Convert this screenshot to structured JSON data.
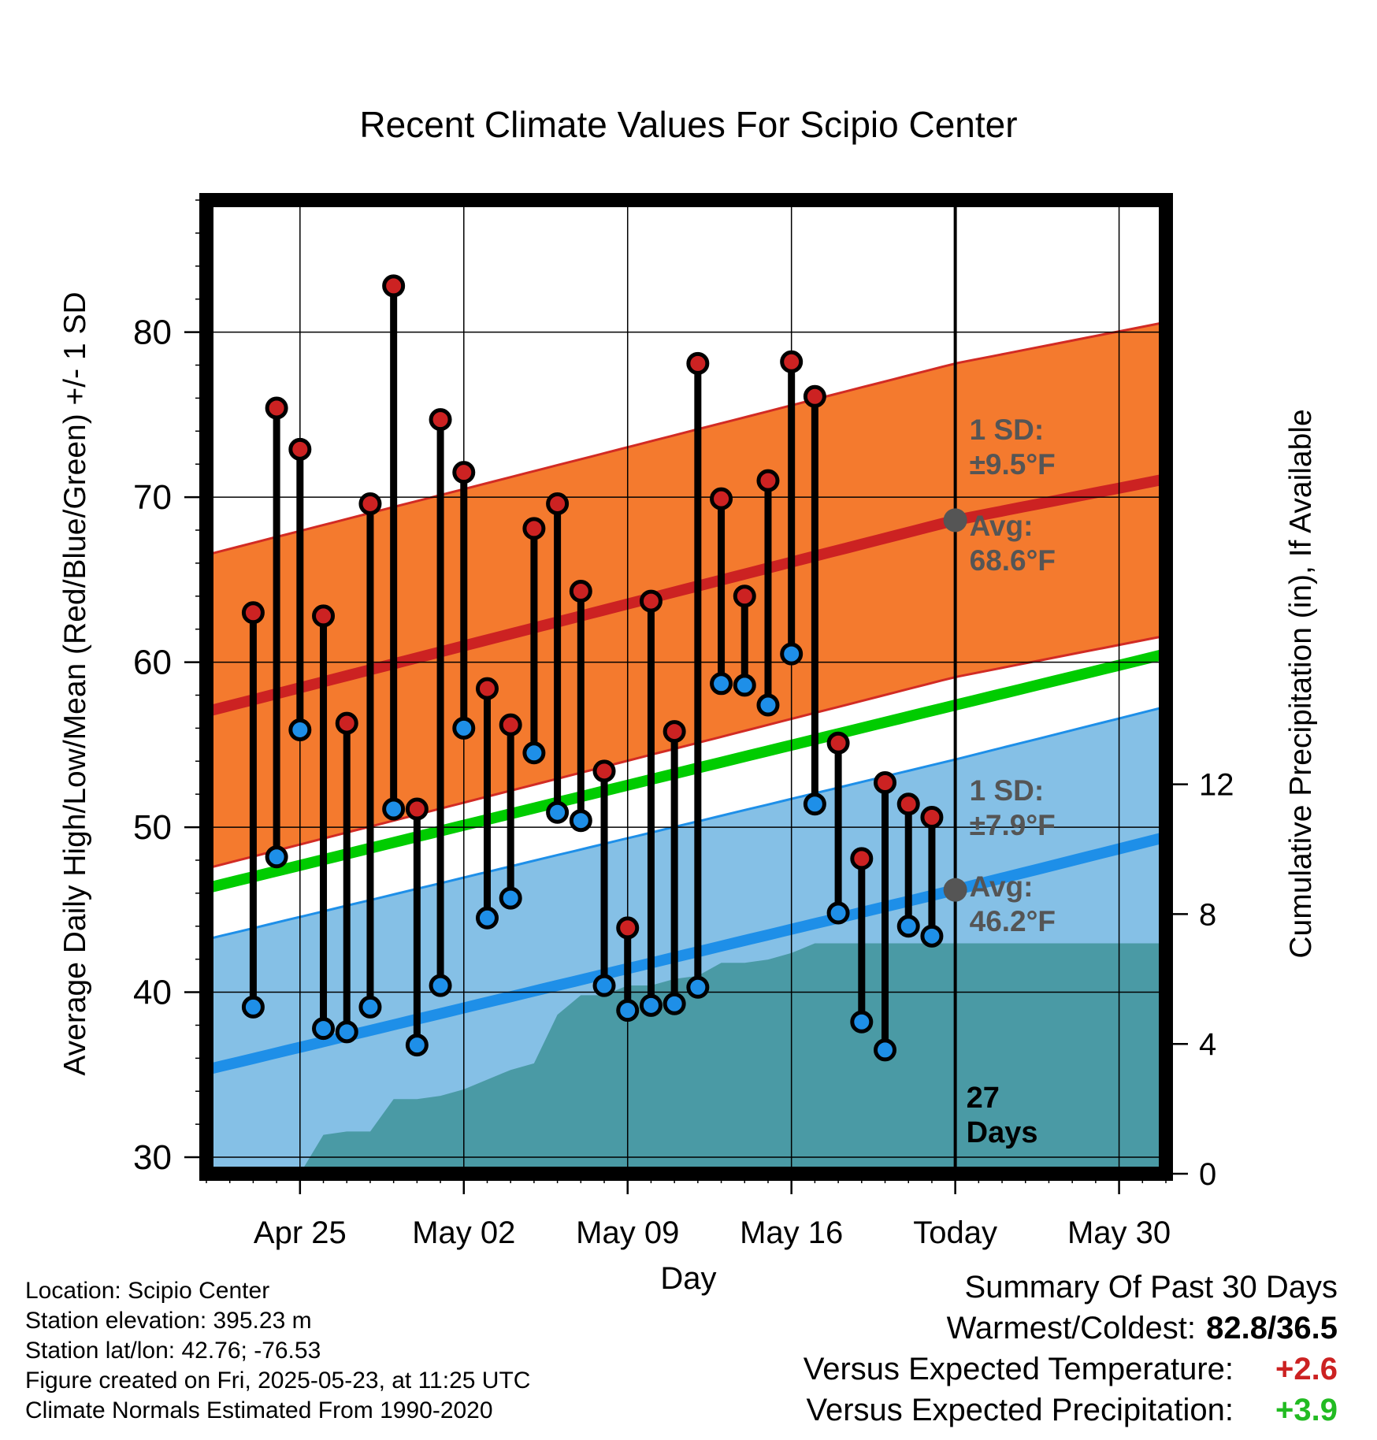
{
  "chart_data": {
    "type": "line",
    "title": "Recent Climate Values For Scipio Center",
    "xlabel": "Day",
    "ylabel": "Average Daily High/Low/Mean (Red/Blue/Green) +/- 1 SD",
    "ylabel_right": "Cumulative Precipitation (in), If Available",
    "ylim": [
      29,
      88
    ],
    "y_ticks": [
      30,
      40,
      50,
      60,
      70,
      80
    ],
    "ylim_right": [
      0,
      30
    ],
    "y_right_ticks": [
      0,
      4,
      8,
      12
    ],
    "xlim": [
      "2025-04-21",
      "2025-06-01"
    ],
    "x_ticks": [
      {
        "date": "2025-04-25",
        "label": "Apr 25"
      },
      {
        "date": "2025-05-02",
        "label": "May 02"
      },
      {
        "date": "2025-05-09",
        "label": "May 09"
      },
      {
        "date": "2025-05-16",
        "label": "May 16"
      },
      {
        "date": "2025-05-23",
        "label": "Today"
      },
      {
        "date": "2025-05-30",
        "label": "May 30"
      }
    ],
    "grid": true,
    "today": "2025-05-23",
    "today_label": "27 Days",
    "normal_high": {
      "dates": [
        "2025-04-21",
        "2025-05-23",
        "2025-06-01"
      ],
      "values": [
        57.0,
        68.6,
        71.1
      ]
    },
    "normal_high_sd": 9.5,
    "normal_low": {
      "dates": [
        "2025-04-21",
        "2025-05-23",
        "2025-06-01"
      ],
      "values": [
        35.3,
        46.2,
        49.4
      ]
    },
    "normal_low_sd": 7.9,
    "normal_mean": {
      "dates": [
        "2025-04-21",
        "2025-05-23",
        "2025-06-01"
      ],
      "values": [
        46.3,
        57.4,
        60.5
      ]
    },
    "annotation_high": {
      "sd": "1 SD:",
      "sd_value": "±9.5°F",
      "avg": "Avg:",
      "avg_value": "68.6°F"
    },
    "annotation_low": {
      "sd": "1 SD:",
      "sd_value": "±7.9°F",
      "avg": "Avg:",
      "avg_value": "46.2°F"
    },
    "daily": [
      {
        "date": "2025-04-23",
        "high": 63.0,
        "low": 39.1
      },
      {
        "date": "2025-04-24",
        "high": 75.4,
        "low": 48.2
      },
      {
        "date": "2025-04-25",
        "high": 72.9,
        "low": 55.9
      },
      {
        "date": "2025-04-26",
        "high": 62.8,
        "low": 37.8
      },
      {
        "date": "2025-04-27",
        "high": 56.3,
        "low": 37.6
      },
      {
        "date": "2025-04-28",
        "high": 69.6,
        "low": 39.1
      },
      {
        "date": "2025-04-29",
        "high": 82.8,
        "low": 51.1
      },
      {
        "date": "2025-04-30",
        "high": 51.1,
        "low": 36.8
      },
      {
        "date": "2025-05-01",
        "high": 74.7,
        "low": 40.4
      },
      {
        "date": "2025-05-02",
        "high": 71.5,
        "low": 56.0
      },
      {
        "date": "2025-05-03",
        "high": 58.4,
        "low": 44.5
      },
      {
        "date": "2025-05-04",
        "high": 56.2,
        "low": 45.7
      },
      {
        "date": "2025-05-05",
        "high": 68.1,
        "low": 54.5
      },
      {
        "date": "2025-05-06",
        "high": 69.6,
        "low": 50.9
      },
      {
        "date": "2025-05-07",
        "high": 64.3,
        "low": 50.4
      },
      {
        "date": "2025-05-08",
        "high": 53.4,
        "low": 40.4
      },
      {
        "date": "2025-05-09",
        "high": 43.9,
        "low": 38.9
      },
      {
        "date": "2025-05-10",
        "high": 63.7,
        "low": 39.2
      },
      {
        "date": "2025-05-11",
        "high": 55.8,
        "low": 39.3
      },
      {
        "date": "2025-05-12",
        "high": 78.1,
        "low": 40.3
      },
      {
        "date": "2025-05-13",
        "high": 69.9,
        "low": 58.7
      },
      {
        "date": "2025-05-14",
        "high": 64.0,
        "low": 58.6
      },
      {
        "date": "2025-05-15",
        "high": 71.0,
        "low": 57.4
      },
      {
        "date": "2025-05-16",
        "high": 78.2,
        "low": 60.5
      },
      {
        "date": "2025-05-17",
        "high": 76.1,
        "low": 51.4
      },
      {
        "date": "2025-05-18",
        "high": 55.1,
        "low": 44.8
      },
      {
        "date": "2025-05-19",
        "high": 48.1,
        "low": 38.2
      },
      {
        "date": "2025-05-20",
        "high": 52.7,
        "low": 36.5
      },
      {
        "date": "2025-05-21",
        "high": 51.4,
        "low": 44.0
      },
      {
        "date": "2025-05-22",
        "high": 50.6,
        "low": 43.4
      }
    ],
    "precip_cumulative": [
      {
        "date": "2025-04-21",
        "value": 0
      },
      {
        "date": "2025-04-25",
        "value": 0
      },
      {
        "date": "2025-04-26",
        "value": 1.2
      },
      {
        "date": "2025-04-27",
        "value": 1.3
      },
      {
        "date": "2025-04-28",
        "value": 1.3
      },
      {
        "date": "2025-04-29",
        "value": 2.3
      },
      {
        "date": "2025-04-30",
        "value": 2.3
      },
      {
        "date": "2025-05-01",
        "value": 2.4
      },
      {
        "date": "2025-05-02",
        "value": 2.6
      },
      {
        "date": "2025-05-03",
        "value": 2.9
      },
      {
        "date": "2025-05-04",
        "value": 3.2
      },
      {
        "date": "2025-05-05",
        "value": 3.4
      },
      {
        "date": "2025-05-06",
        "value": 4.9
      },
      {
        "date": "2025-05-07",
        "value": 5.5
      },
      {
        "date": "2025-05-08",
        "value": 5.5
      },
      {
        "date": "2025-05-09",
        "value": 5.8
      },
      {
        "date": "2025-05-10",
        "value": 5.8
      },
      {
        "date": "2025-05-11",
        "value": 6.0
      },
      {
        "date": "2025-05-12",
        "value": 6.1
      },
      {
        "date": "2025-05-13",
        "value": 6.5
      },
      {
        "date": "2025-05-14",
        "value": 6.5
      },
      {
        "date": "2025-05-15",
        "value": 6.6
      },
      {
        "date": "2025-05-16",
        "value": 6.8
      },
      {
        "date": "2025-05-17",
        "value": 7.1
      },
      {
        "date": "2025-05-22",
        "value": 7.1
      },
      {
        "date": "2025-06-01",
        "value": 7.1
      }
    ]
  },
  "info": {
    "location": "Location: Scipio Center",
    "elevation": "Station elevation: 395.23 m",
    "latlon": "Station lat/lon: 42.76; -76.53",
    "created": "Figure created on Fri, 2025-05-23, at 11:25 UTC",
    "normals": "Climate Normals Estimated From 1990-2020"
  },
  "summary": {
    "title": "Summary Of Past 30 Days",
    "warm_cold_label": "Warmest/Coldest:",
    "warm_cold_value": "82.8/36.5",
    "temp_label": "Versus Expected Temperature:",
    "temp_value": "+2.6",
    "temp_color": "#cc2222",
    "precip_label": "Versus Expected Precipitation:",
    "precip_value": "+3.9",
    "precip_color": "#22bb22"
  },
  "colors": {
    "high_band": "#f47a2e",
    "high_edge": "#d22b24",
    "high_line": "#cc2222",
    "low_band": "#85c0e6",
    "low_edge": "#1e8fe8",
    "low_line": "#1e8fe8",
    "mean_line": "#00cc00",
    "precip_fill": "#4a9aa5",
    "high_marker": "#cc2222",
    "low_marker": "#1e8fe8",
    "annotation_text": "#555555",
    "avg_marker": "#555555"
  }
}
